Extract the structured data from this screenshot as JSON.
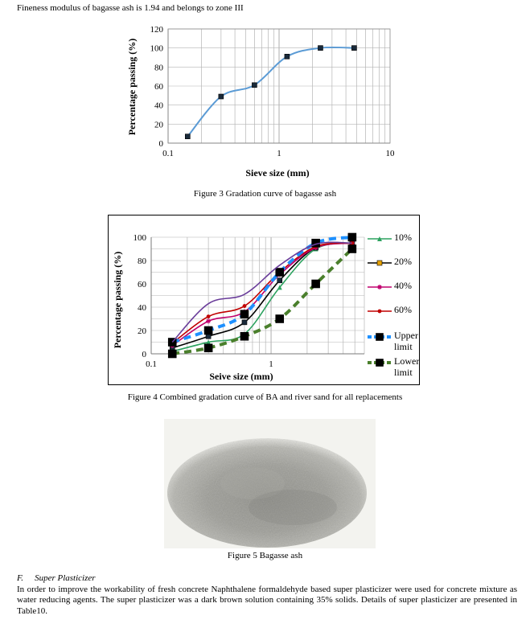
{
  "intro_text": "Fineness modulus of bagasse ash is 1.94 and belongs to zone III",
  "figure3": {
    "caption": "Figure 3 Gradation curve of bagasse ash",
    "chart_data": {
      "type": "line",
      "xscale": "log",
      "xlim": [
        0.1,
        10
      ],
      "ylim": [
        0,
        120
      ],
      "grid": true,
      "xlabel": "Sieve size (mm)",
      "ylabel": "Percentage passing (%)",
      "xticks": [
        "0.1",
        "1",
        "10"
      ],
      "yticks": [
        "0",
        "20",
        "40",
        "60",
        "80",
        "100",
        "120"
      ],
      "series": [
        {
          "color": "#5b9bd5",
          "marker": "square",
          "x": [
            0.15,
            0.3,
            0.6,
            1.18,
            2.36,
            4.75
          ],
          "y": [
            7,
            49,
            61,
            91,
            100,
            100
          ]
        }
      ]
    }
  },
  "figure4": {
    "caption": "Figure 4 Combined gradation curve of BA and river sand for all replacements",
    "chart_data": {
      "type": "line",
      "xscale": "log",
      "xlim": [
        0.1,
        6
      ],
      "ylim": [
        0,
        100
      ],
      "grid": true,
      "xlabel": "Seive size (mm)",
      "ylabel": "Percentage passing (%)",
      "xticks": [
        "0.1",
        "1"
      ],
      "yticks": [
        "0",
        "20",
        "40",
        "60",
        "80",
        "100"
      ],
      "legend_position": "right",
      "series": [
        {
          "name": "10%",
          "color": "#2ca25f",
          "marker": "triangle",
          "x": [
            0.15,
            0.3,
            0.6,
            1.18,
            2.36,
            4.75
          ],
          "y": [
            2,
            10,
            17,
            57,
            90,
            95
          ]
        },
        {
          "name": "20%",
          "color": "#000000",
          "marker": "square",
          "x": [
            0.15,
            0.3,
            0.6,
            1.18,
            2.36,
            4.75
          ],
          "y": [
            5,
            15,
            27,
            63,
            91,
            95
          ]
        },
        {
          "name": "40%",
          "color": "#c0006d",
          "marker": "star",
          "x": [
            0.15,
            0.3,
            0.6,
            1.18,
            2.36,
            4.75
          ],
          "y": [
            7,
            28,
            36,
            68,
            91,
            95
          ]
        },
        {
          "name": "60%",
          "color": "#c00000",
          "marker": "dot",
          "x": [
            0.15,
            0.3,
            0.6,
            1.18,
            2.36,
            4.75
          ],
          "y": [
            9,
            32,
            41,
            70,
            92,
            95
          ]
        },
        {
          "name": "Upper limit",
          "color": "#1e90ff",
          "marker": "square",
          "dashed": true,
          "x": [
            0.15,
            0.3,
            0.6,
            1.18,
            2.36,
            4.75
          ],
          "y": [
            10,
            20,
            34,
            70,
            95,
            100
          ]
        },
        {
          "name": "Lower limit",
          "color": "#4a7f2c",
          "marker": "square",
          "dashed": true,
          "x": [
            0.15,
            0.3,
            0.6,
            1.18,
            2.36,
            4.75
          ],
          "y": [
            0,
            5,
            15,
            30,
            60,
            90
          ]
        },
        {
          "name": "",
          "color": "#6a3d9a",
          "marker": "none",
          "x": [
            0.15,
            0.3,
            0.6,
            1.18,
            2.36,
            4.75
          ],
          "y": [
            10,
            43,
            51,
            76,
            94,
            95
          ]
        }
      ]
    }
  },
  "figure5": {
    "caption": "Figure 5 Bagasse ash"
  },
  "section": {
    "label": "F.",
    "title": "Super Plasticizer",
    "paragraph": "In order to improve the workability of fresh concrete Naphthalene formaldehyde based super plasticizer were used for concrete mixture as water reducing agents. The super plasticizer was a dark brown solution containing 35% solids. Details of super plasticizer are presented in Table10."
  }
}
